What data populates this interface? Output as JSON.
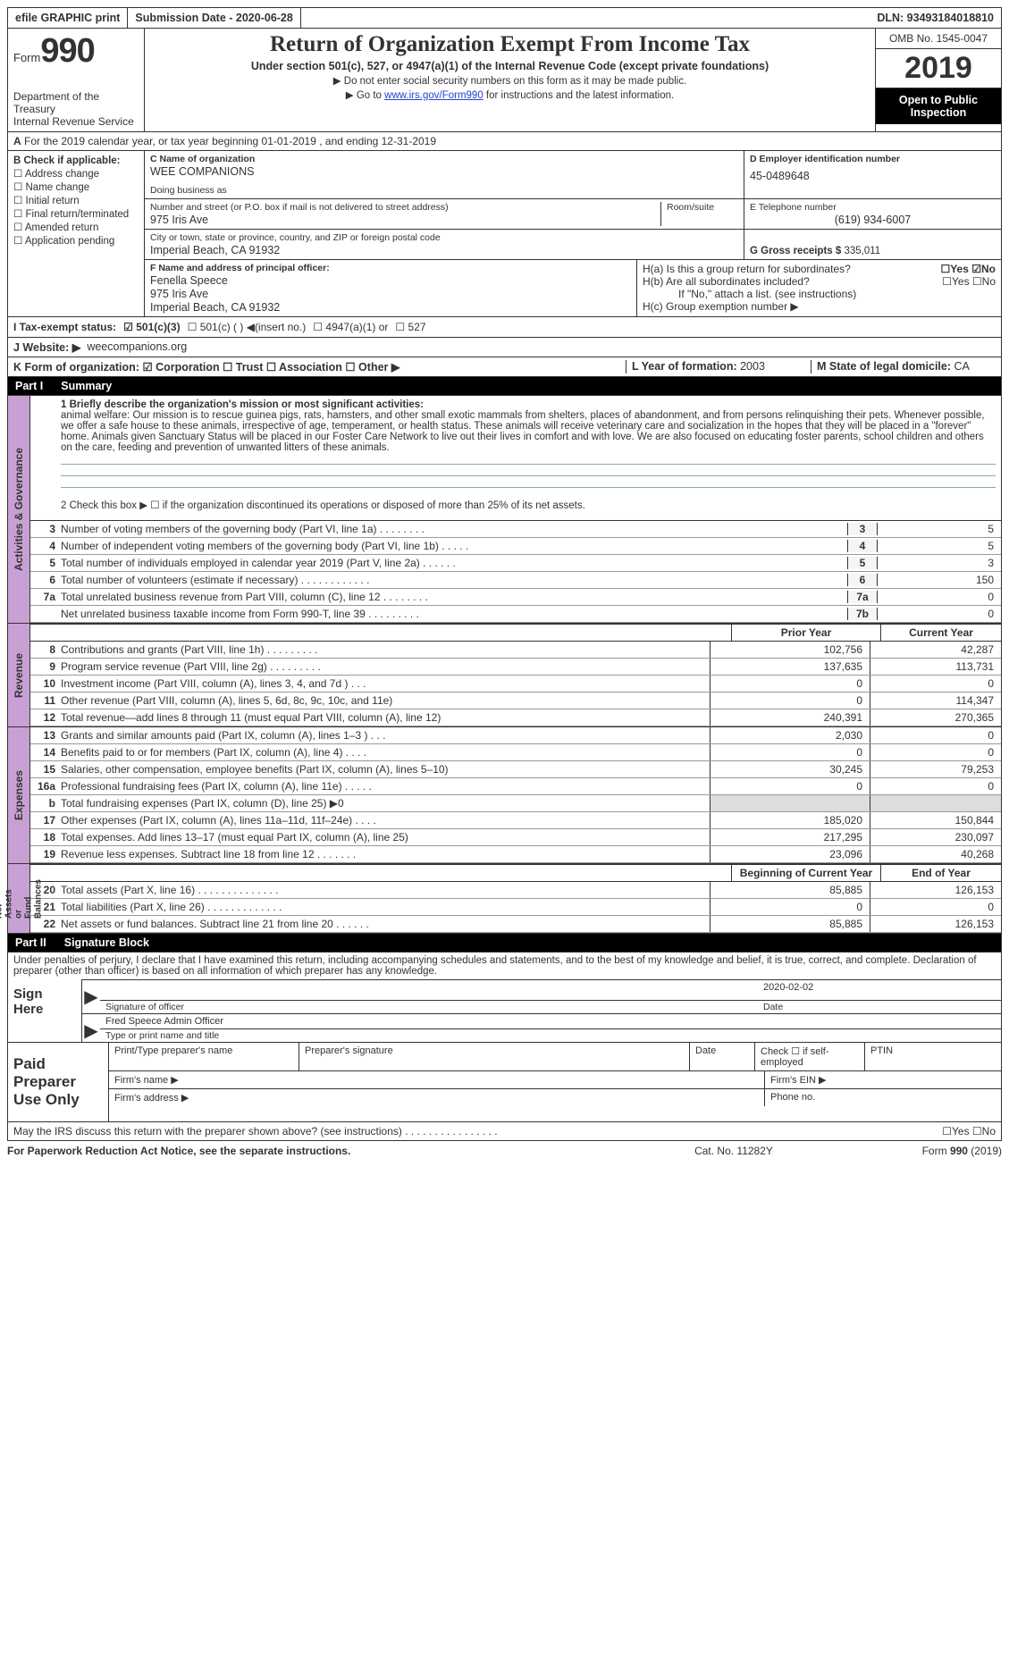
{
  "top": {
    "efile": "efile GRAPHIC print",
    "submission": "Submission Date - 2020-06-28",
    "dln": "DLN: 93493184018810"
  },
  "header": {
    "form_word": "Form",
    "form_num": "990",
    "dept": "Department of the Treasury\nInternal Revenue Service",
    "title": "Return of Organization Exempt From Income Tax",
    "sub": "Under section 501(c), 527, or 4947(a)(1) of the Internal Revenue Code (except private foundations)",
    "note1": "▶ Do not enter social security numbers on this form as it may be made public.",
    "note2_pre": "▶ Go to ",
    "note2_link": "www.irs.gov/Form990",
    "note2_post": " for instructions and the latest information.",
    "omb": "OMB No. 1545-0047",
    "year": "2019",
    "open_pub": "Open to Public Inspection"
  },
  "a": {
    "text": "For the 2019 calendar year, or tax year beginning 01-01-2019    , and ending 12-31-2019"
  },
  "b": {
    "label": "B Check if applicable:",
    "items": [
      "☐ Address change",
      "☐ Name change",
      "☐ Initial return",
      "☐ Final return/terminated",
      "☐ Amended return",
      "☐ Application pending"
    ]
  },
  "c": {
    "name_lbl": "C Name of organization",
    "name": "WEE COMPANIONS",
    "dba_lbl": "Doing business as",
    "dba": "",
    "addr_lbl": "Number and street (or P.O. box if mail is not delivered to street address)",
    "room_lbl": "Room/suite",
    "addr": "975 Iris Ave",
    "city_lbl": "City or town, state or province, country, and ZIP or foreign postal code",
    "city": "Imperial Beach, CA  91932",
    "f_lbl": "F  Name and address of principal officer:",
    "f_name": "Fenella Speece",
    "f_addr": "975 Iris Ave",
    "f_city": "Imperial Beach, CA  91932"
  },
  "d": {
    "ein_lbl": "D Employer identification number",
    "ein": "45-0489648",
    "tel_lbl": "E Telephone number",
    "tel": "(619) 934-6007",
    "gross_lbl": "G Gross receipts $",
    "gross": "335,011",
    "ha_lbl": "H(a)  Is this a group return for subordinates?",
    "ha": "☐Yes  ☑No",
    "hb_lbl": "H(b)  Are all subordinates included?",
    "hb": "☐Yes  ☐No",
    "hb_note": "If \"No,\" attach a list. (see instructions)",
    "hc_lbl": "H(c)  Group exemption number ▶"
  },
  "i": {
    "lbl": "I   Tax-exempt status:",
    "c1": "☑  501(c)(3)",
    "c2": "☐  501(c) (  ) ◀(insert no.)",
    "c3": "☐  4947(a)(1) or",
    "c4": "☐  527"
  },
  "j": {
    "lbl": "J   Website: ▶",
    "val": "weecompanions.org"
  },
  "k": {
    "lbl": "K Form of organization:",
    "c1": "☑ Corporation  ☐ Trust  ☐ Association  ☐ Other ▶",
    "l_lbl": "L Year of formation:",
    "l_val": "2003",
    "m_lbl": "M State of legal domicile:",
    "m_val": "CA"
  },
  "part1": {
    "num": "Part I",
    "title": "Summary"
  },
  "mission": {
    "q1_lbl": "1   Briefly describe the organization's mission or most significant activities:",
    "text": "animal welfare: Our mission is to rescue guinea pigs, rats, hamsters, and other small exotic mammals from shelters, places of abandonment, and from persons relinquishing their pets. Whenever possible, we offer a safe house to these animals, irrespective of age, temperament, or health status. These animals will receive veterinary care and socialization in the hopes that they will be placed in a \"forever\" home. Animals given Sanctuary Status will be placed in our Foster Care Network to live out their lives in comfort and with love. We are also focused on educating foster parents, school children and others on the care, feeding and prevention of unwanted litters of these animals.",
    "q2": "2   Check this box ▶ ☐ if the organization discontinued its operations or disposed of more than 25% of its net assets."
  },
  "gov_rows": [
    {
      "n": "3",
      "t": "Number of voting members of the governing body (Part VI, line 1a)  .    .    .    .    .    .    .    .",
      "box": "3",
      "v": "5"
    },
    {
      "n": "4",
      "t": "Number of independent voting members of the governing body (Part VI, line 1b)   .    .    .    .    .",
      "box": "4",
      "v": "5"
    },
    {
      "n": "5",
      "t": "Total number of individuals employed in calendar year 2019 (Part V, line 2a)   .    .    .    .    .    .",
      "box": "5",
      "v": "3"
    },
    {
      "n": "6",
      "t": "Total number of volunteers (estimate if necessary)   .    .    .    .    .    .    .    .    .    .    .    .",
      "box": "6",
      "v": "150"
    },
    {
      "n": "7a",
      "t": "Total unrelated business revenue from Part VIII, column (C), line 12   .    .    .    .    .    .    .    .",
      "box": "7a",
      "v": "0"
    },
    {
      "n": "",
      "t": "Net unrelated business taxable income from Form 990-T, line 39   .    .    .    .    .    .    .    .    .",
      "box": "7b",
      "v": "0"
    }
  ],
  "tbl_hdr": {
    "py": "Prior Year",
    "cy": "Current Year"
  },
  "rev_rows": [
    {
      "n": "8",
      "t": "Contributions and grants (Part VIII, line 1h)   .    .    .    .    .    .    .    .    .",
      "py": "102,756",
      "cy": "42,287"
    },
    {
      "n": "9",
      "t": "Program service revenue (Part VIII, line 2g)   .    .    .    .    .    .    .    .    .",
      "py": "137,635",
      "cy": "113,731"
    },
    {
      "n": "10",
      "t": "Investment income (Part VIII, column (A), lines 3, 4, and 7d )   .    .    .",
      "py": "0",
      "cy": "0"
    },
    {
      "n": "11",
      "t": "Other revenue (Part VIII, column (A), lines 5, 6d, 8c, 9c, 10c, and 11e)",
      "py": "0",
      "cy": "114,347"
    },
    {
      "n": "12",
      "t": "Total revenue—add lines 8 through 11 (must equal Part VIII, column (A), line 12)",
      "py": "240,391",
      "cy": "270,365"
    }
  ],
  "exp_rows": [
    {
      "n": "13",
      "t": "Grants and similar amounts paid (Part IX, column (A), lines 1–3 )   .    .    .",
      "py": "2,030",
      "cy": "0"
    },
    {
      "n": "14",
      "t": "Benefits paid to or for members (Part IX, column (A), line 4)   .    .    .    .",
      "py": "0",
      "cy": "0"
    },
    {
      "n": "15",
      "t": "Salaries, other compensation, employee benefits (Part IX, column (A), lines 5–10)",
      "py": "30,245",
      "cy": "79,253"
    },
    {
      "n": "16a",
      "t": "Professional fundraising fees (Part IX, column (A), line 11e)   .    .    .    .    .",
      "py": "0",
      "cy": "0"
    },
    {
      "n": "b",
      "t": "Total fundraising expenses (Part IX, column (D), line 25) ▶0",
      "py": "shade",
      "cy": "shade"
    },
    {
      "n": "17",
      "t": "Other expenses (Part IX, column (A), lines 11a–11d, 11f–24e)   .    .    .    .",
      "py": "185,020",
      "cy": "150,844"
    },
    {
      "n": "18",
      "t": "Total expenses. Add lines 13–17 (must equal Part IX, column (A), line 25)",
      "py": "217,295",
      "cy": "230,097"
    },
    {
      "n": "19",
      "t": "Revenue less expenses. Subtract line 18 from line 12   .    .    .    .    .    .    .",
      "py": "23,096",
      "cy": "40,268"
    }
  ],
  "net_hdr": {
    "py": "Beginning of Current Year",
    "cy": "End of Year"
  },
  "net_rows": [
    {
      "n": "20",
      "t": "Total assets (Part X, line 16)   .    .    .    .    .    .    .    .    .    .    .    .    .    .",
      "py": "85,885",
      "cy": "126,153"
    },
    {
      "n": "21",
      "t": "Total liabilities (Part X, line 26)   .    .    .    .    .    .    .    .    .    .    .    .    .",
      "py": "0",
      "cy": "0"
    },
    {
      "n": "22",
      "t": "Net assets or fund balances. Subtract line 21 from line 20   .    .    .    .    .    .",
      "py": "85,885",
      "cy": "126,153"
    }
  ],
  "sides": {
    "gov": "Activities & Governance",
    "rev": "Revenue",
    "exp": "Expenses",
    "net": "Net Assets or\nFund Balances"
  },
  "part2": {
    "num": "Part II",
    "title": "Signature Block"
  },
  "sig": {
    "decl": "Under penalties of perjury, I declare that I have examined this return, including accompanying schedules and statements, and to the best of my knowledge and belief, it is true, correct, and complete. Declaration of preparer (other than officer) is based on all information of which preparer has any knowledge.",
    "sign_here": "Sign Here",
    "sig_lbl": "Signature of officer",
    "date_lbl": "Date",
    "date_val": "2020-02-02",
    "name_val": "Fred Speece  Admin Officer",
    "name_lbl": "Type or print name and title"
  },
  "paid": {
    "lbl": "Paid Preparer Use Only",
    "h1": "Print/Type preparer's name",
    "h2": "Preparer's signature",
    "h3": "Date",
    "h4": "Check ☐ if self-employed",
    "h5": "PTIN",
    "f1": "Firm's name    ▶",
    "f2": "Firm's EIN ▶",
    "f3": "Firm's address ▶",
    "f4": "Phone no."
  },
  "may": {
    "text": "May the IRS discuss this return with the preparer shown above? (see instructions)   .    .    .    .    .    .    .    .    .    .    .    .    .    .    .    .",
    "yn": "☐Yes  ☐No"
  },
  "footer": {
    "l": "For Paperwork Reduction Act Notice, see the separate instructions.",
    "m": "Cat. No. 11282Y",
    "r": "Form 990 (2019)"
  }
}
